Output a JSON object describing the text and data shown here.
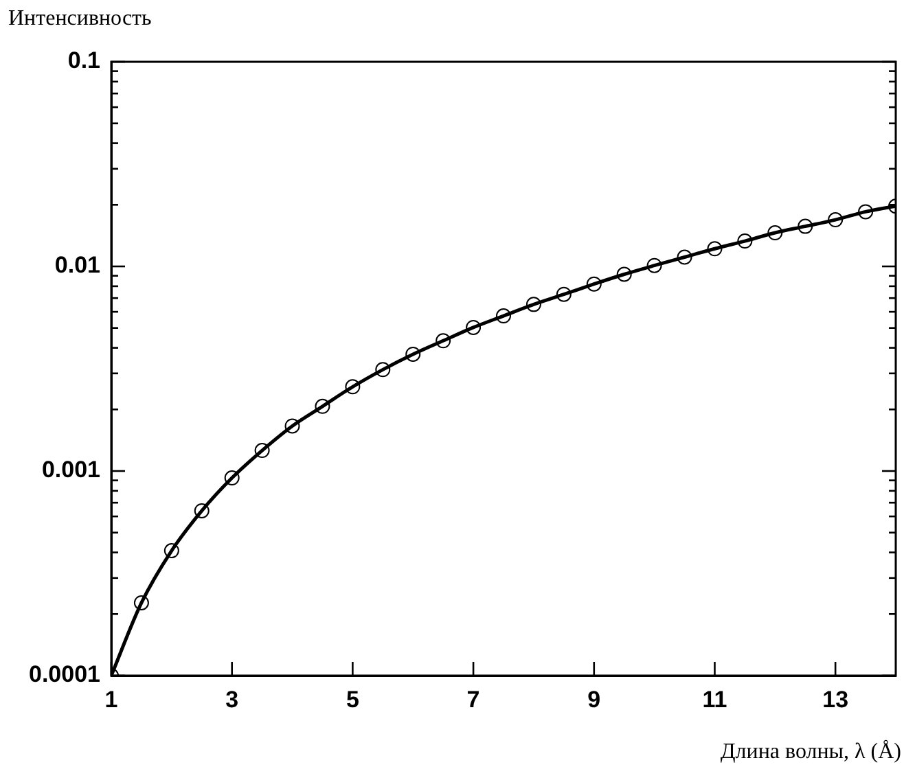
{
  "chart_data": {
    "type": "line",
    "xlabel": "Длина волны, λ (Å)",
    "ylabel": "Интенсивность",
    "x": [
      1,
      1.5,
      2,
      2.5,
      3,
      3.5,
      4,
      4.5,
      5,
      5.5,
      6,
      6.5,
      7,
      7.5,
      8,
      8.5,
      9,
      9.5,
      10,
      10.5,
      11,
      11.5,
      12,
      12.5,
      13,
      13.5,
      14
    ],
    "series": [
      {
        "type": "line",
        "color": "#000000",
        "marker": "none",
        "line_style": "solid",
        "values": [
          0.0001,
          0.000227,
          0.000408,
          0.000639,
          0.000925,
          0.00126,
          0.00166,
          0.00207,
          0.00258,
          0.00313,
          0.00372,
          0.00433,
          0.00503,
          0.00573,
          0.00652,
          0.0073,
          0.0082,
          0.00915,
          0.0101,
          0.0111,
          0.0122,
          0.0133,
          0.0146,
          0.0157,
          0.0169,
          0.0185,
          0.0197
        ]
      },
      {
        "type": "scatter",
        "color": "#000000",
        "marker": "circle",
        "values": [
          0.0001,
          0.000227,
          0.000408,
          0.000639,
          0.000925,
          0.00126,
          0.00166,
          0.00207,
          0.00258,
          0.00313,
          0.00372,
          0.00433,
          0.00503,
          0.00573,
          0.00652,
          0.0073,
          0.0082,
          0.00915,
          0.0101,
          0.0111,
          0.0122,
          0.0133,
          0.0146,
          0.0157,
          0.0169,
          0.0185,
          0.0197
        ]
      }
    ],
    "log": "y",
    "grid": false,
    "legend": false,
    "xlim": [
      1,
      14
    ],
    "xticks": [
      1,
      3,
      5,
      7,
      9,
      11,
      13
    ],
    "ylim": [
      0.0001,
      0.1
    ],
    "yticks": [
      {
        "value": 0.0001,
        "label": "0.0001"
      },
      {
        "value": 0.0002,
        "label": null
      },
      {
        "value": 0.0003,
        "label": null
      },
      {
        "value": 0.0004,
        "label": null
      },
      {
        "value": 0.0005,
        "label": null
      },
      {
        "value": 0.0006,
        "label": null
      },
      {
        "value": 0.0007,
        "label": null
      },
      {
        "value": 0.0008,
        "label": null
      },
      {
        "value": 0.0009,
        "label": null
      },
      {
        "value": 0.001,
        "label": "0.001"
      },
      {
        "value": 0.002,
        "label": null
      },
      {
        "value": 0.003,
        "label": null
      },
      {
        "value": 0.004,
        "label": null
      },
      {
        "value": 0.005,
        "label": null
      },
      {
        "value": 0.006,
        "label": null
      },
      {
        "value": 0.007,
        "label": null
      },
      {
        "value": 0.008,
        "label": null
      },
      {
        "value": 0.009,
        "label": null
      },
      {
        "value": 0.01,
        "label": "0.01"
      },
      {
        "value": 0.02,
        "label": null
      },
      {
        "value": 0.03,
        "label": null
      },
      {
        "value": 0.04,
        "label": null
      },
      {
        "value": 0.05,
        "label": null
      },
      {
        "value": 0.06,
        "label": null
      },
      {
        "value": 0.07,
        "label": null
      },
      {
        "value": 0.08,
        "label": null
      },
      {
        "value": 0.09,
        "label": null
      },
      {
        "value": 0.1,
        "label": "0.1"
      }
    ]
  }
}
